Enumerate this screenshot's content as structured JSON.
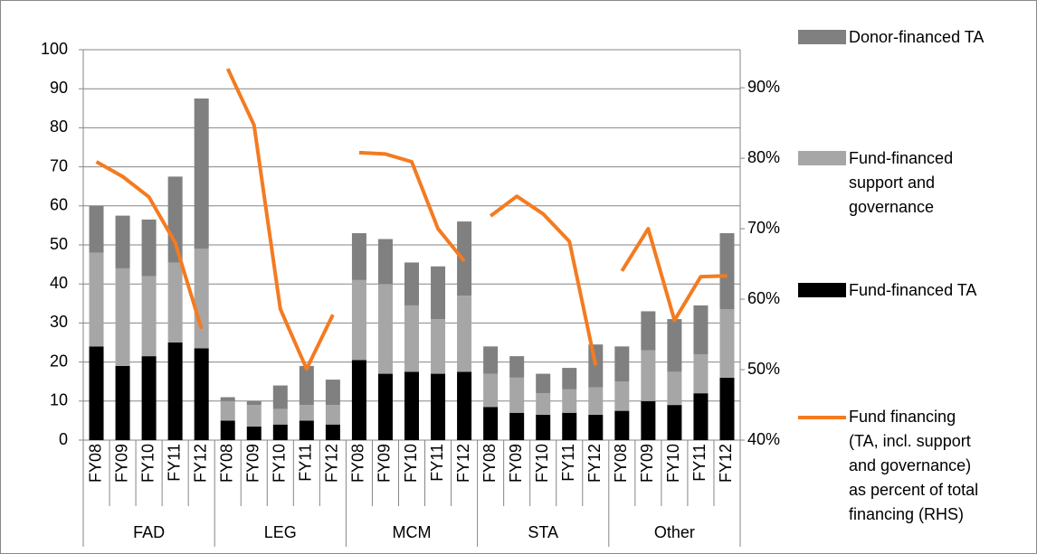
{
  "chart_data": {
    "type": "bar",
    "groups": [
      "FAD",
      "LEG",
      "MCM",
      "STA",
      "Other"
    ],
    "categories": [
      "FY08",
      "FY09",
      "FY10",
      "FY11",
      "FY12",
      "FY08",
      "FY09",
      "FY10",
      "FY11",
      "FY12",
      "FY08",
      "FY09",
      "FY10",
      "FY11",
      "FY12",
      "FY08",
      "FY09",
      "FY10",
      "FY11",
      "FY12",
      "FY08",
      "FY09",
      "FY10",
      "FY11",
      "FY12"
    ],
    "series": [
      {
        "name": "Fund-financed TA",
        "type": "bar",
        "color": "#000000",
        "values": [
          24,
          19,
          21.5,
          25,
          23.5,
          5,
          3.5,
          4,
          5,
          4,
          20.5,
          17,
          17.5,
          17,
          17.5,
          8.5,
          7,
          6.5,
          7,
          6.5,
          7.5,
          10,
          9,
          12,
          16
        ]
      },
      {
        "name": "Fund-financed support and governance",
        "type": "bar",
        "color": "#a6a6a6",
        "values": [
          24,
          25,
          20.5,
          20.5,
          25.5,
          5,
          5.5,
          4,
          4,
          5,
          20.5,
          23,
          17,
          14,
          19.5,
          8.5,
          9,
          5.5,
          6,
          7,
          7.5,
          13,
          8.5,
          10,
          17.5
        ]
      },
      {
        "name": "Donor-financed TA",
        "type": "bar",
        "color": "#808080",
        "values": [
          12,
          13.5,
          14.5,
          22,
          38.5,
          1,
          1,
          6,
          10,
          6.5,
          12,
          11.5,
          11,
          13.5,
          19,
          7,
          5.5,
          5,
          5.5,
          11,
          9,
          10,
          13.5,
          12.5,
          19.5
        ]
      },
      {
        "name": "Fund financing (TA, incl. support and governance) as percent of total financing (RHS)",
        "type": "line",
        "axis": "y2",
        "color": "#f47b20",
        "values": [
          79.5,
          77.4,
          74.5,
          68,
          55.8,
          92.7,
          84.7,
          58.6,
          50.1,
          57.8,
          80.8,
          80.6,
          79.5,
          70,
          65.4,
          71.8,
          74.6,
          72.1,
          68.2,
          50.6,
          64,
          70,
          57,
          63.2,
          63.3
        ]
      }
    ],
    "ylim": [
      0,
      100
    ],
    "yticks": [
      0,
      10,
      20,
      30,
      40,
      50,
      60,
      70,
      80,
      90,
      100
    ],
    "y2lim": [
      40,
      95.4
    ],
    "y2ticks": [
      {
        "value": 40,
        "label": "40%"
      },
      {
        "value": 50,
        "label": "50%"
      },
      {
        "value": 60,
        "label": "60%"
      },
      {
        "value": 70,
        "label": "70%"
      },
      {
        "value": 80,
        "label": "80%"
      },
      {
        "value": 90,
        "label": "90%"
      }
    ],
    "grid": true
  }
}
